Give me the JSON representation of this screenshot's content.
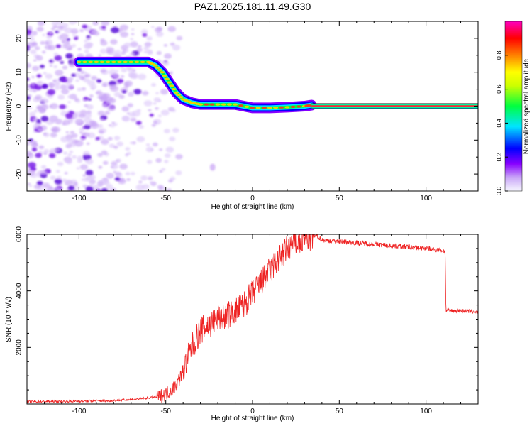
{
  "title": "PAZ1.2025.181.11.49.G30",
  "chart_data": [
    {
      "type": "heatmap",
      "xlabel": "Height of straight line (km)",
      "ylabel": "Frequency (Hz)",
      "xlim": [
        -130,
        130
      ],
      "ylim": [
        -25,
        25
      ],
      "xticks": [
        -100,
        -50,
        0,
        50,
        100
      ],
      "yticks": [
        -20,
        -10,
        0,
        10,
        20
      ],
      "grid": false,
      "colorbar": {
        "label": "Normalized spectral amplitude",
        "range": [
          0,
          1
        ],
        "ticks": [
          "0.0",
          "0.2",
          "0.4",
          "0.6",
          "0.8"
        ],
        "colormap": [
          "#f7f7ff",
          "#8800ff",
          "#0000ff",
          "#00e5ff",
          "#00ff40",
          "#ffff00",
          "#ff8000",
          "#ff0000",
          "#ff00c0"
        ]
      },
      "ridge": {
        "x": [
          -100,
          -90,
          -80,
          -70,
          -60,
          -56,
          -52,
          -48,
          -44,
          -40,
          -35,
          -30,
          -20,
          -10,
          0,
          10,
          20,
          30,
          34
        ],
        "y": [
          13,
          13,
          13,
          13,
          13,
          12,
          10,
          7,
          4,
          2,
          1,
          0.5,
          0.5,
          0.5,
          -0.5,
          -0.5,
          -0.3,
          0,
          0.3
        ]
      },
      "steady_line": {
        "x": [
          34,
          130
        ],
        "y": 0
      },
      "noise_region": {
        "x": [
          -130,
          -50
        ],
        "y": [
          -25,
          25
        ]
      }
    },
    {
      "type": "line",
      "xlabel": "Height of straight line (km)",
      "ylabel": "SNR (10 * v/v)",
      "xlim": [
        -130,
        130
      ],
      "ylim": [
        0,
        6000
      ],
      "xticks": [
        -100,
        -50,
        0,
        50,
        100
      ],
      "yticks": [
        2000,
        4000,
        6000
      ],
      "grid": false,
      "line_color": "#ee2222",
      "series": [
        {
          "x": [
            -130,
            -100,
            -80,
            -65,
            -55,
            -50,
            -45,
            -42,
            -38,
            -35,
            -30,
            -25,
            -20,
            -15,
            -10,
            -5,
            0,
            5,
            10,
            15,
            20,
            25,
            30,
            35,
            37,
            40,
            50,
            60,
            70,
            80,
            90,
            100,
            108,
            111,
            111.5,
            115,
            120,
            125,
            130
          ],
          "y": [
            80,
            100,
            120,
            180,
            250,
            350,
            600,
            900,
            1500,
            2000,
            2600,
            2800,
            3000,
            3100,
            3300,
            3500,
            3900,
            4300,
            4700,
            5100,
            5500,
            5700,
            5800,
            5900,
            5950,
            5800,
            5750,
            5700,
            5650,
            5600,
            5550,
            5500,
            5450,
            5400,
            3300,
            3300,
            3300,
            3280,
            3250
          ]
        }
      ]
    }
  ]
}
